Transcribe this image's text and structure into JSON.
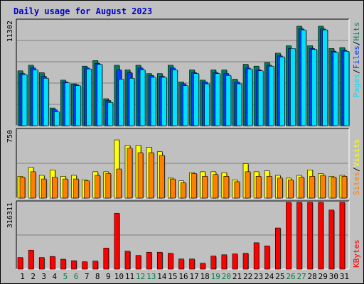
{
  "title": "Daily usage for August 2023",
  "colors": {
    "background": "#c0c0c0",
    "title": "#0000cc",
    "hits_fill": "#008060",
    "files_fill": "#0040ff",
    "pages_fill": "#00e0ff",
    "visits_fill": "#ffff00",
    "sites_fill": "#ff8000",
    "kbytes_fill": "#ff0000",
    "weekend_day": "#008040",
    "weekday_day": "#000000",
    "grid": "#808080"
  },
  "chart_data": [
    {
      "type": "bar",
      "panel": "hits-files-pages",
      "categories": [
        "1",
        "2",
        "3",
        "4",
        "5",
        "6",
        "7",
        "8",
        "9",
        "10",
        "11",
        "12",
        "13",
        "14",
        "15",
        "16",
        "17",
        "18",
        "19",
        "20",
        "21",
        "22",
        "23",
        "24",
        "25",
        "26",
        "27",
        "28",
        "29",
        "30",
        "31"
      ],
      "weekend_days": [
        "5",
        "6",
        "12",
        "13",
        "19",
        "20",
        "26",
        "27"
      ],
      "ymax_label": "11302",
      "ymax": 11302,
      "grid": true,
      "series": [
        {
          "name": "Hits",
          "color": "#008060",
          "values": [
            5900,
            6500,
            5700,
            1900,
            4900,
            4500,
            6400,
            7000,
            2900,
            6500,
            6000,
            6500,
            5600,
            5600,
            6500,
            4700,
            6000,
            4900,
            6000,
            6000,
            5000,
            6600,
            6400,
            6800,
            7800,
            8600,
            10700,
            8600,
            10700,
            8300,
            8400
          ]
        },
        {
          "name": "Files",
          "color": "#0040ff",
          "values": [
            5600,
            6200,
            5300,
            1700,
            4700,
            4400,
            6200,
            6700,
            2700,
            6000,
            5700,
            6200,
            5400,
            5300,
            6200,
            4500,
            5700,
            4700,
            5700,
            5600,
            4700,
            6200,
            6000,
            6500,
            7500,
            8300,
            10400,
            8300,
            10400,
            8000,
            8100
          ]
        },
        {
          "name": "Pages",
          "color": "#00e0ff",
          "values": [
            5500,
            6000,
            5100,
            1500,
            4600,
            4300,
            6100,
            6600,
            2500,
            5000,
            5100,
            6000,
            5200,
            5200,
            6000,
            4300,
            5600,
            4500,
            5600,
            5400,
            4500,
            6100,
            5900,
            6400,
            7400,
            8300,
            10300,
            8200,
            10300,
            7900,
            8000
          ]
        }
      ]
    },
    {
      "type": "bar",
      "panel": "visits-sites",
      "categories": [
        "1",
        "2",
        "3",
        "4",
        "5",
        "6",
        "7",
        "8",
        "9",
        "10",
        "11",
        "12",
        "13",
        "14",
        "15",
        "16",
        "17",
        "18",
        "19",
        "20",
        "21",
        "22",
        "23",
        "24",
        "25",
        "26",
        "27",
        "28",
        "29",
        "30",
        "31"
      ],
      "ymax_label": "750",
      "ymax": 750,
      "grid": true,
      "series": [
        {
          "name": "Visits",
          "color": "#ffff00",
          "values": [
            240,
            340,
            250,
            310,
            240,
            250,
            200,
            290,
            290,
            640,
            580,
            580,
            560,
            510,
            220,
            190,
            280,
            290,
            290,
            280,
            200,
            380,
            290,
            300,
            250,
            220,
            250,
            310,
            270,
            240,
            250
          ]
        },
        {
          "name": "Sites",
          "color": "#ff8000",
          "values": [
            230,
            290,
            210,
            230,
            210,
            210,
            190,
            250,
            270,
            320,
            550,
            500,
            500,
            470,
            210,
            170,
            270,
            240,
            260,
            240,
            180,
            290,
            240,
            240,
            220,
            200,
            230,
            240,
            250,
            230,
            240
          ]
        }
      ]
    },
    {
      "type": "bar",
      "panel": "kbytes",
      "categories": [
        "1",
        "2",
        "3",
        "4",
        "5",
        "6",
        "7",
        "8",
        "9",
        "10",
        "11",
        "12",
        "13",
        "14",
        "15",
        "16",
        "17",
        "18",
        "19",
        "20",
        "21",
        "22",
        "23",
        "24",
        "25",
        "26",
        "27",
        "28",
        "29",
        "30",
        "31"
      ],
      "ymax_label": "316311",
      "ymax": 316311,
      "grid": true,
      "series": [
        {
          "name": "KBytes",
          "color": "#ff0000",
          "values": [
            55000,
            90000,
            55000,
            60000,
            47000,
            40000,
            35000,
            38000,
            100000,
            265000,
            85000,
            65000,
            80000,
            80000,
            75000,
            48000,
            48000,
            28000,
            62000,
            68000,
            72000,
            75000,
            125000,
            110000,
            195000,
            355000,
            385000,
            400000,
            370000,
            280000,
            330000
          ]
        }
      ]
    }
  ],
  "legends": {
    "panel1": {
      "a": "Pages",
      "b": "Files",
      "c": "Hits",
      "sep": "/"
    },
    "panel2": {
      "a": "Sites",
      "b": "Visits",
      "sep": "/"
    },
    "panel3": {
      "a": "KBytes"
    }
  }
}
